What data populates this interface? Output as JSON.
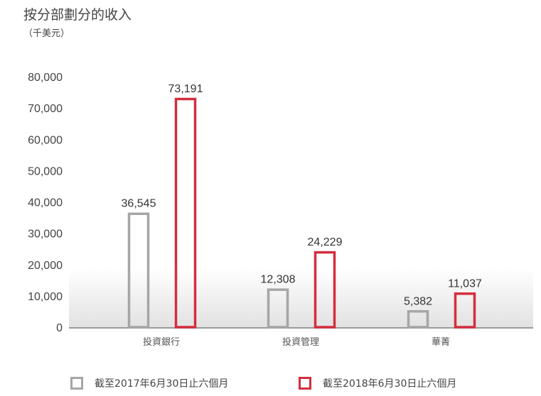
{
  "title": "按分部劃分的收入",
  "subtitle": "（千美元）",
  "chart_data": {
    "type": "bar",
    "title": "按分部劃分的收入",
    "ylabel": "（千美元）",
    "categories": [
      "投資銀行",
      "投資管理",
      "華菁"
    ],
    "series": [
      {
        "name": "截至2017年6月30日止六個月",
        "values": [
          36545,
          12308,
          5382
        ],
        "labels": [
          "36,545",
          "12,308",
          "5,382"
        ],
        "color": "#a6a6a6"
      },
      {
        "name": "截至2018年6月30日止六個月",
        "values": [
          73191,
          24229,
          11037
        ],
        "labels": [
          "73,191",
          "24,229",
          "11,037"
        ],
        "color": "#d42e3e"
      }
    ],
    "ylim": [
      0,
      80000
    ],
    "yticks": [
      "0",
      "10,000",
      "20,000",
      "30,000",
      "40,000",
      "50,000",
      "60,000",
      "70,000",
      "80,000"
    ],
    "grid": false,
    "legend": "bottom"
  }
}
